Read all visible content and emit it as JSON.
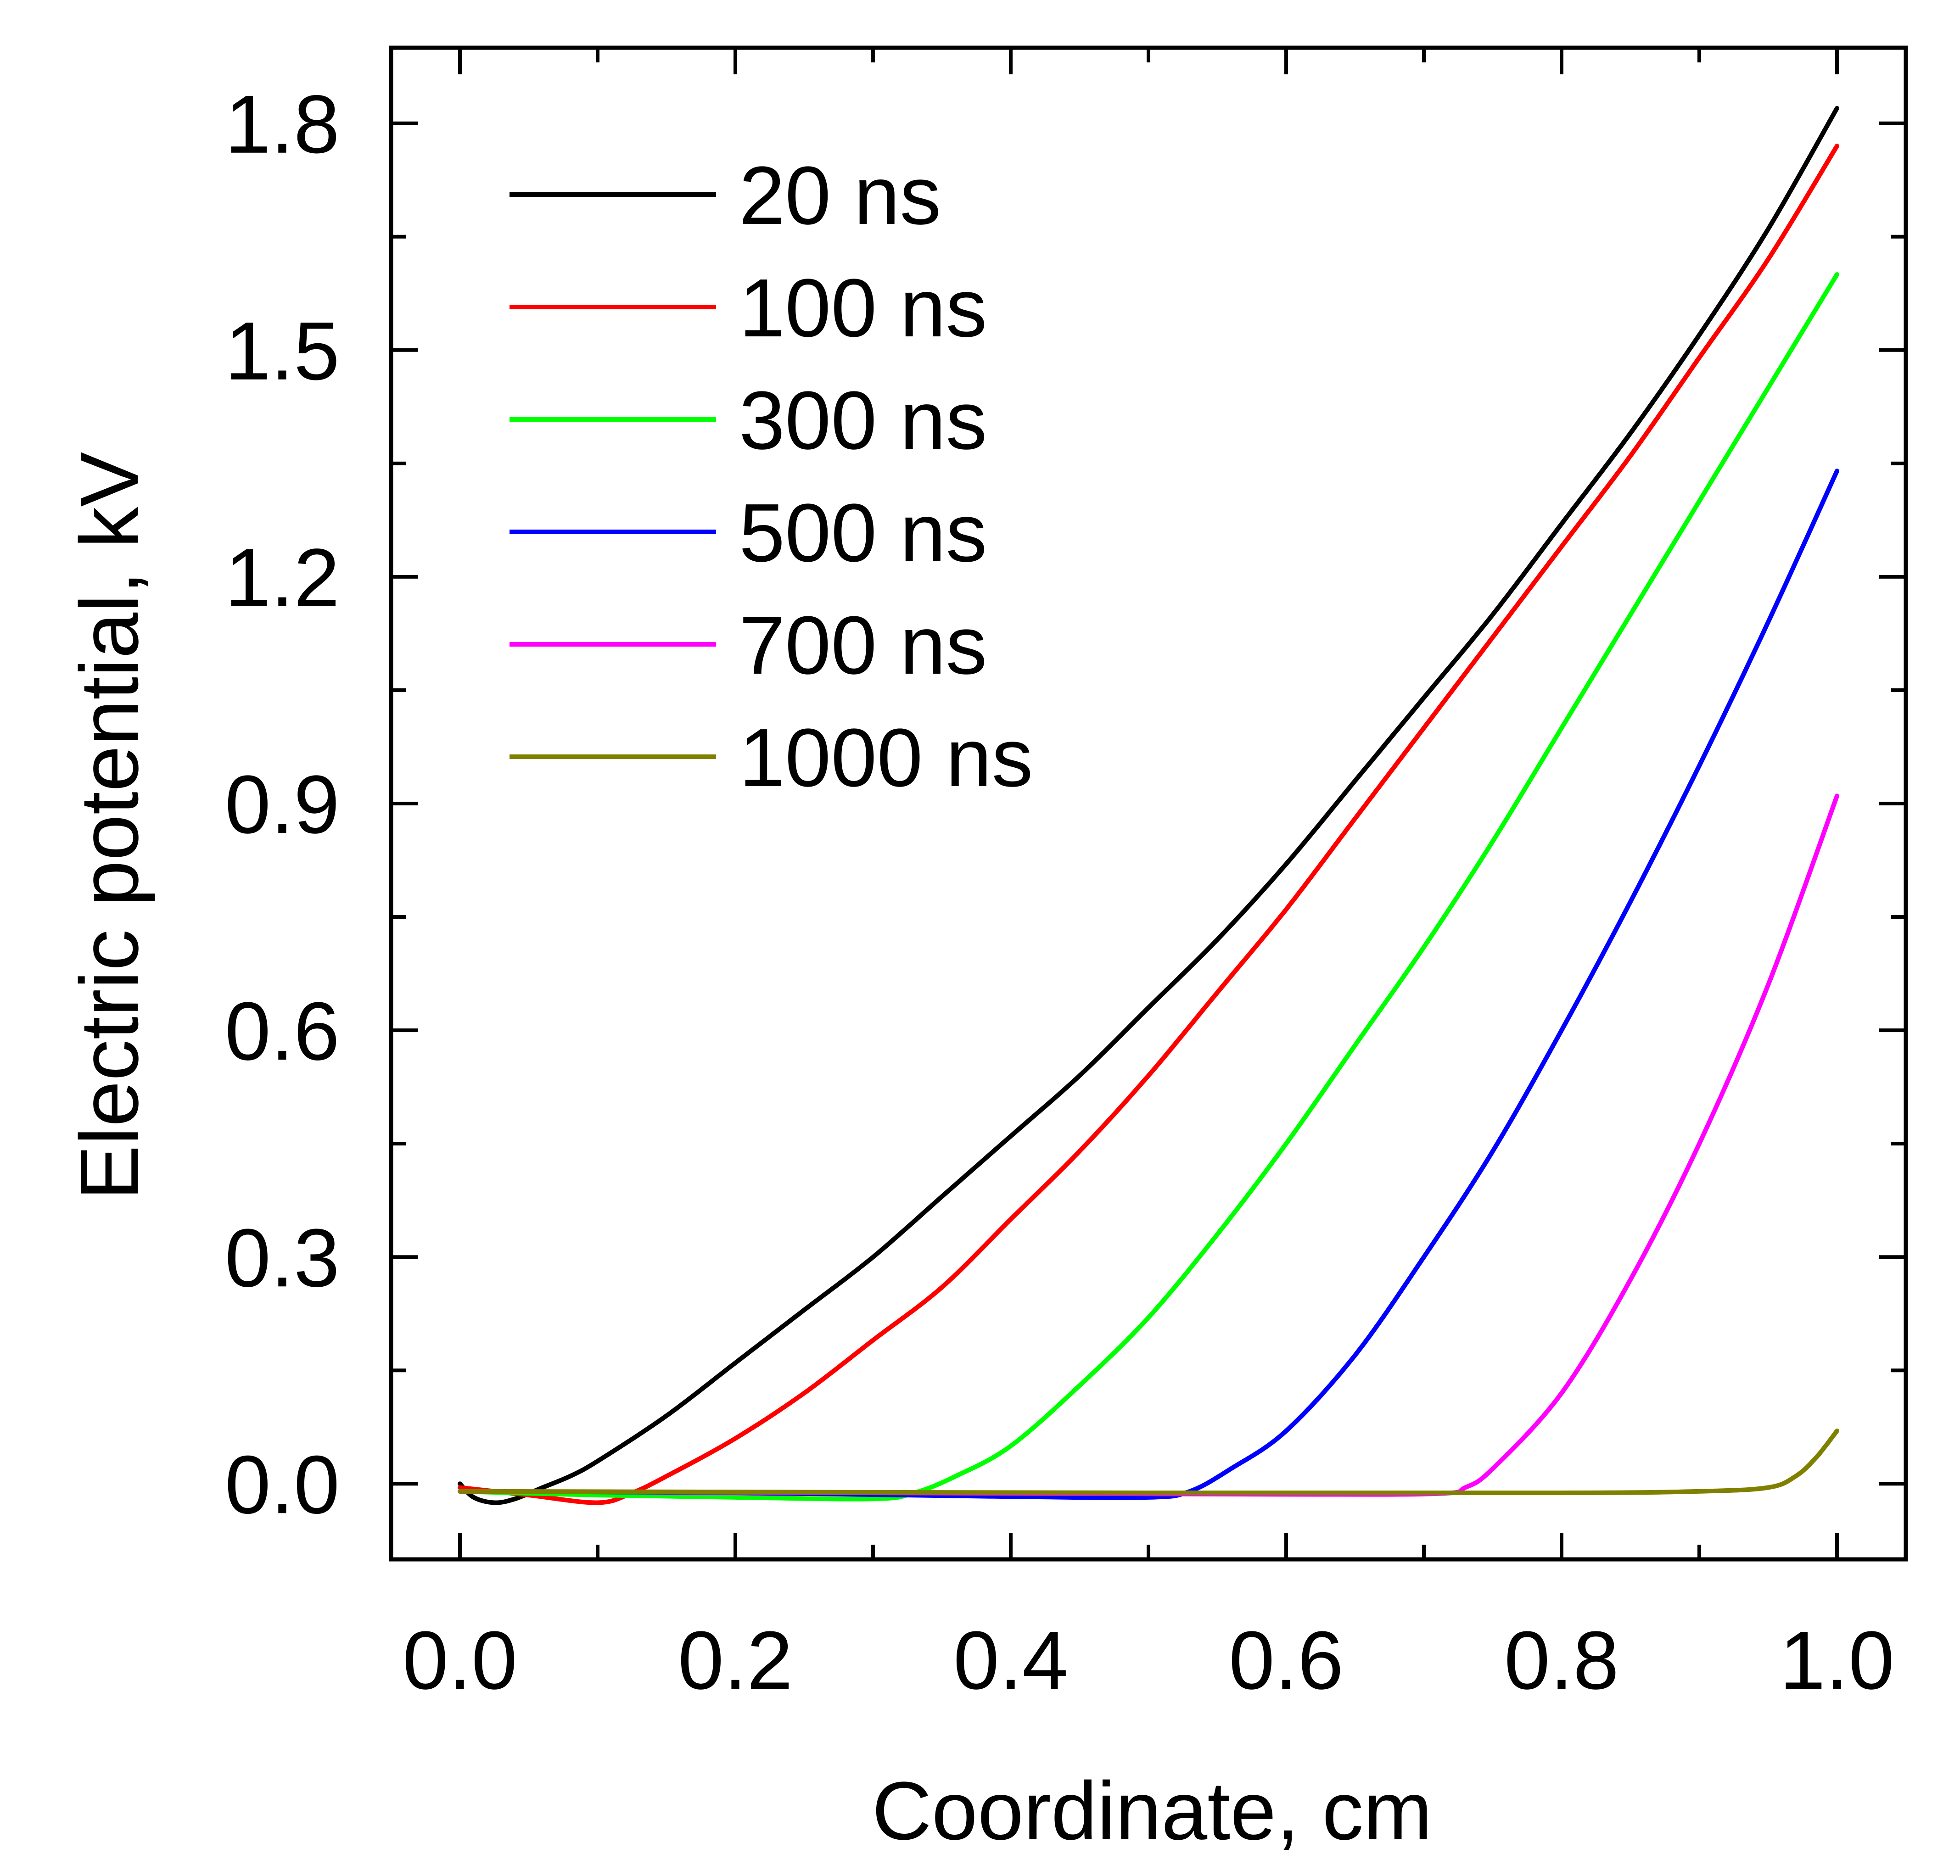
{
  "chart_data": {
    "type": "line",
    "title": "",
    "xlabel": "Coordinate, cm",
    "ylabel": "Electric potential, kV",
    "xlim": [
      -0.05,
      1.05
    ],
    "ylim": [
      -0.1,
      1.9
    ],
    "xticks": [
      0.0,
      0.2,
      0.4,
      0.6,
      0.8,
      1.0
    ],
    "xtick_labels": [
      "0.0",
      "0.2",
      "0.4",
      "0.6",
      "0.8",
      "1.0"
    ],
    "xminor": [
      0.1,
      0.3,
      0.5,
      0.7,
      0.9
    ],
    "yticks": [
      0.0,
      0.3,
      0.6,
      0.9,
      1.2,
      1.5,
      1.8
    ],
    "ytick_labels": [
      "0.0",
      "0.3",
      "0.6",
      "0.9",
      "1.2",
      "1.5",
      "1.8"
    ],
    "yminor": [
      0.15,
      0.45,
      0.75,
      1.05,
      1.35,
      1.65
    ],
    "grid": false,
    "legend_position": "top-left",
    "series": [
      {
        "name": "20 ns",
        "color": "#000000",
        "x": [
          0.0,
          0.01,
          0.025,
          0.04,
          0.06,
          0.08,
          0.1,
          0.15,
          0.2,
          0.25,
          0.3,
          0.35,
          0.4,
          0.45,
          0.5,
          0.55,
          0.6,
          0.65,
          0.7,
          0.75,
          0.8,
          0.85,
          0.9,
          0.95,
          1.0
        ],
        "y": [
          0.0,
          -0.018,
          -0.025,
          -0.02,
          -0.005,
          0.01,
          0.03,
          0.09,
          0.16,
          0.23,
          0.3,
          0.38,
          0.46,
          0.54,
          0.63,
          0.72,
          0.82,
          0.93,
          1.04,
          1.15,
          1.27,
          1.39,
          1.52,
          1.66,
          1.82
        ]
      },
      {
        "name": "100 ns",
        "color": "#ff0000",
        "x": [
          0.0,
          0.05,
          0.1,
          0.125,
          0.15,
          0.2,
          0.25,
          0.3,
          0.35,
          0.4,
          0.45,
          0.5,
          0.55,
          0.6,
          0.65,
          0.7,
          0.75,
          0.8,
          0.85,
          0.9,
          0.95,
          1.0
        ],
        "y": [
          -0.005,
          -0.015,
          -0.025,
          -0.012,
          0.01,
          0.06,
          0.12,
          0.19,
          0.26,
          0.35,
          0.44,
          0.54,
          0.65,
          0.76,
          0.88,
          1.0,
          1.12,
          1.24,
          1.36,
          1.49,
          1.62,
          1.77
        ]
      },
      {
        "name": "300 ns",
        "color": "#00ff00",
        "x": [
          0.0,
          0.1,
          0.2,
          0.3,
          0.33,
          0.36,
          0.4,
          0.45,
          0.5,
          0.55,
          0.6,
          0.65,
          0.7,
          0.75,
          0.8,
          0.85,
          0.9,
          0.95,
          1.0
        ],
        "y": [
          -0.01,
          -0.015,
          -0.018,
          -0.02,
          -0.012,
          0.01,
          0.05,
          0.13,
          0.22,
          0.33,
          0.45,
          0.58,
          0.71,
          0.85,
          1.0,
          1.15,
          1.3,
          1.45,
          1.6
        ]
      },
      {
        "name": "500 ns",
        "color": "#0000ff",
        "x": [
          0.0,
          0.2,
          0.4,
          0.5,
          0.53,
          0.56,
          0.6,
          0.65,
          0.7,
          0.75,
          0.8,
          0.85,
          0.9,
          0.95,
          1.0
        ],
        "y": [
          -0.01,
          -0.012,
          -0.017,
          -0.018,
          -0.01,
          0.02,
          0.07,
          0.17,
          0.3,
          0.44,
          0.6,
          0.77,
          0.95,
          1.14,
          1.34
        ]
      },
      {
        "name": "700 ns",
        "color": "#ff00ff",
        "x": [
          0.0,
          0.3,
          0.6,
          0.71,
          0.73,
          0.75,
          0.8,
          0.85,
          0.9,
          0.95,
          1.0
        ],
        "y": [
          -0.01,
          -0.012,
          -0.014,
          -0.013,
          -0.005,
          0.02,
          0.12,
          0.27,
          0.45,
          0.66,
          0.91
        ]
      },
      {
        "name": "1000 ns",
        "color": "#808000",
        "x": [
          0.0,
          0.5,
          0.8,
          0.9,
          0.95,
          0.97,
          0.985,
          1.0
        ],
        "y": [
          -0.01,
          -0.012,
          -0.012,
          -0.01,
          -0.005,
          0.01,
          0.035,
          0.07
        ]
      }
    ]
  }
}
